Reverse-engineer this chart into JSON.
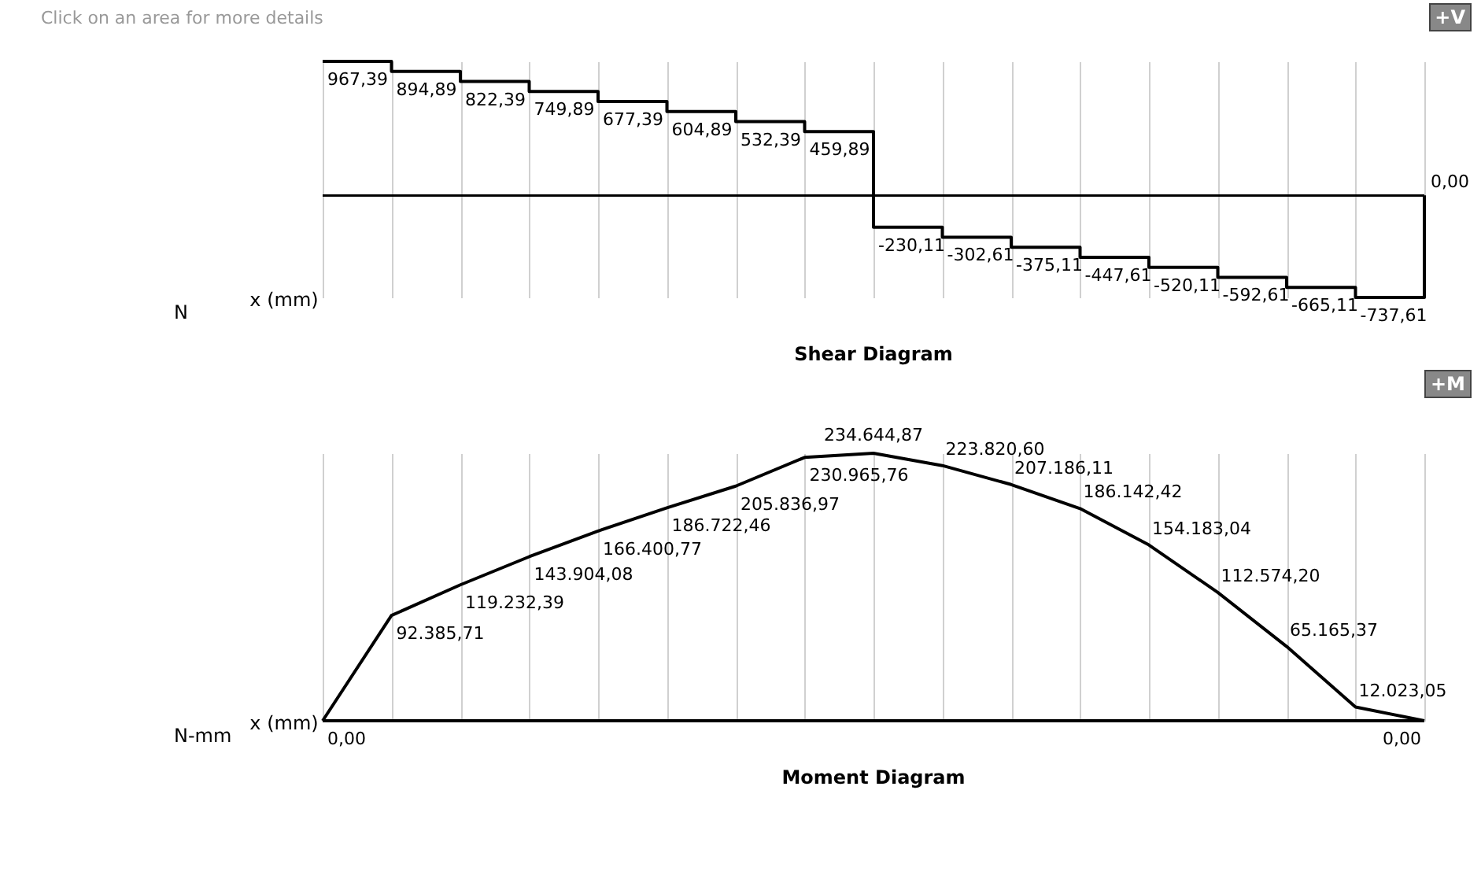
{
  "chart_data": [
    {
      "type": "step",
      "title": "Shear Diagram",
      "xlabel": "x (mm)",
      "ylabel": "N",
      "color": "#000000",
      "grid": "x",
      "tick_labels": false,
      "categories": [
        null,
        null,
        null,
        null,
        null,
        null,
        null,
        null,
        null,
        null,
        null,
        null,
        null,
        null,
        null,
        null,
        null
      ],
      "values": [
        967.39,
        894.89,
        822.39,
        749.89,
        677.39,
        604.89,
        532.39,
        459.89,
        -230.11,
        -302.61,
        -375.11,
        -447.61,
        -520.11,
        -592.61,
        -665.11,
        -737.61,
        0
      ],
      "value_labels": [
        "967,39",
        "894,89",
        "822,39",
        "749,89",
        "677,39",
        "604,89",
        "532,39",
        "459,89",
        "-230,11",
        "-302,61",
        "-375,11",
        "-447,61",
        "-520,11",
        "-592,61",
        "-665,11",
        "-737,61",
        "0,00"
      ],
      "ref_lines": [
        {
          "axis": "y",
          "value": 0
        }
      ],
      "annotations": [
        "Click on an area for more details",
        "+V"
      ]
    },
    {
      "type": "line",
      "title": "Moment Diagram",
      "xlabel": "x (mm)",
      "ylabel": "N-mm",
      "color": "#000000",
      "grid": "x",
      "tick_labels": false,
      "categories": [
        null,
        null,
        null,
        null,
        null,
        null,
        null,
        null,
        null,
        null,
        null,
        null,
        null,
        null,
        null,
        null,
        null
      ],
      "values": [
        0,
        92385.71,
        119232.39,
        143904.08,
        166400.77,
        186722.46,
        205836.97,
        230965.76,
        234644.87,
        223820.6,
        207186.11,
        186142.42,
        154183.04,
        112574.2,
        65165.37,
        12023.05,
        0
      ],
      "value_labels": [
        "0,00",
        "92.385,71",
        "119.232,39",
        "143.904,08",
        "166.400,77",
        "186.722,46",
        "205.836,97",
        "230.965,76",
        "234.644,87",
        "223.820,60",
        "207.186,11",
        "186.142,42",
        "154.183,04",
        "112.574,20",
        "65.165,37",
        "12.023,05",
        "0,00"
      ],
      "ref_lines": [
        {
          "axis": "y",
          "value": 0
        }
      ],
      "annotations": [
        "+M"
      ]
    }
  ]
}
